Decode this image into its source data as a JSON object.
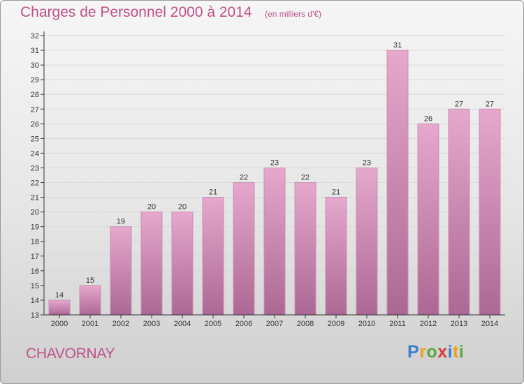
{
  "header": {
    "title": "Charges de Personnel 2000 à 2014",
    "subtitle": "(en milliers d'€)"
  },
  "footer": {
    "town": "CHAVORNAY",
    "logo_text": "Proxiti"
  },
  "colors": {
    "title": "#c0508a",
    "bar_top": "#e6a8cd",
    "bar_bottom": "#ac6894",
    "bar_stroke": "#c890b0",
    "axis": "#333333",
    "gridline": "#d8d8d8"
  },
  "chart_data": {
    "type": "bar",
    "categories": [
      "2000",
      "2001",
      "2002",
      "2003",
      "2004",
      "2005",
      "2006",
      "2007",
      "2008",
      "2009",
      "2010",
      "2011",
      "2012",
      "2013",
      "2014"
    ],
    "values": [
      14,
      15,
      19,
      20,
      20,
      21,
      22,
      23,
      22,
      21,
      23,
      31,
      26,
      27,
      27
    ],
    "ylim": [
      13,
      32
    ],
    "yticks": [
      13,
      14,
      15,
      16,
      17,
      18,
      19,
      20,
      21,
      22,
      23,
      24,
      25,
      26,
      27,
      28,
      29,
      30,
      31,
      32
    ],
    "grid": "horizontal",
    "data_labels": true,
    "xlabel": "",
    "ylabel": ""
  }
}
